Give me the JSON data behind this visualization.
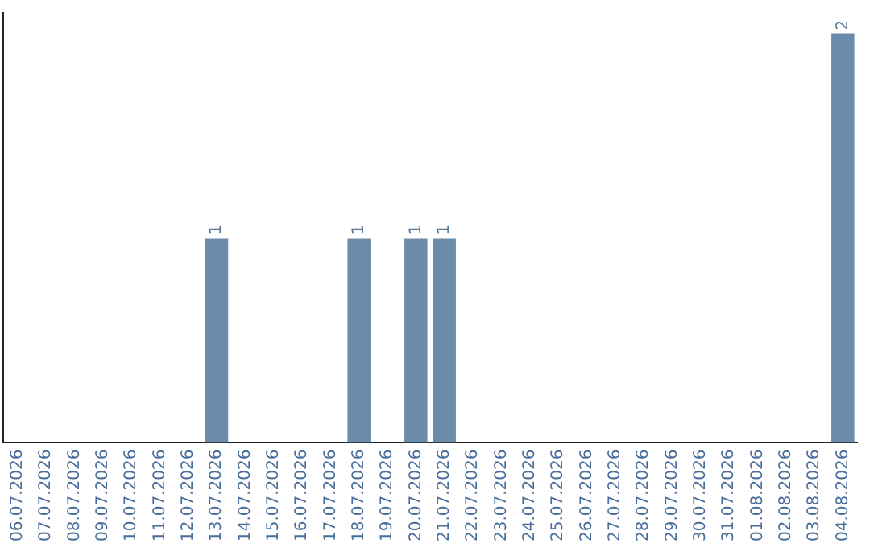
{
  "chart_data": {
    "type": "bar",
    "categories": [
      "06.07.2026",
      "07.07.2026",
      "08.07.2026",
      "09.07.2026",
      "10.07.2026",
      "11.07.2026",
      "12.07.2026",
      "13.07.2026",
      "14.07.2026",
      "15.07.2026",
      "16.07.2026",
      "17.07.2026",
      "18.07.2026",
      "19.07.2026",
      "20.07.2026",
      "21.07.2026",
      "22.07.2026",
      "23.07.2026",
      "24.07.2026",
      "25.07.2026",
      "26.07.2026",
      "27.07.2026",
      "28.07.2026",
      "29.07.2026",
      "30.07.2026",
      "31.07.2026",
      "01.08.2026",
      "02.08.2026",
      "03.08.2026",
      "04.08.2026"
    ],
    "values": [
      0,
      0,
      0,
      0,
      0,
      0,
      0,
      1,
      0,
      0,
      0,
      0,
      1,
      0,
      1,
      1,
      0,
      0,
      0,
      0,
      0,
      0,
      0,
      0,
      0,
      0,
      0,
      0,
      0,
      2
    ],
    "value_labels": [
      null,
      null,
      null,
      null,
      null,
      null,
      null,
      "1",
      null,
      null,
      null,
      null,
      "1",
      null,
      "1",
      "1",
      null,
      null,
      null,
      null,
      null,
      null,
      null,
      null,
      null,
      null,
      null,
      null,
      null,
      "2"
    ],
    "color": "#6b8cab",
    "ylim": [
      0,
      2.1
    ],
    "tick_labels": "x",
    "grid": false,
    "legend": false
  }
}
